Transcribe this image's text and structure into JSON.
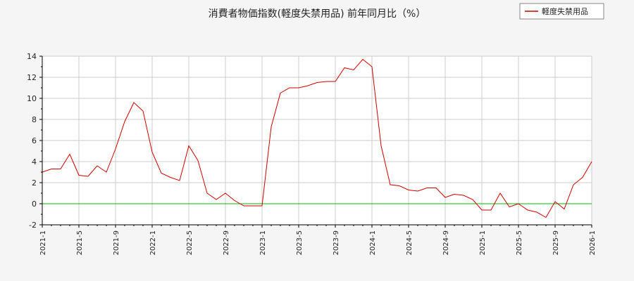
{
  "chart_data": {
    "type": "line",
    "title": "消費者物価指数(軽度失禁用品) 前年同月比（%）",
    "xlabel": "",
    "ylabel": "",
    "ylim": [
      -2,
      14
    ],
    "yticks": [
      -2,
      0,
      2,
      4,
      6,
      8,
      10,
      12,
      14
    ],
    "xticks": [
      "2021-1",
      "2021-5",
      "2021-9",
      "2022-1",
      "2022-5",
      "2022-9",
      "2023-1",
      "2023-5",
      "2023-9",
      "2024-1",
      "2024-5",
      "2024-9",
      "2025-1",
      "2025-5",
      "2025-9",
      "2026-1"
    ],
    "grid": true,
    "legend_position": "top-right",
    "colors": {
      "series": "#cc0000",
      "zero_line": "#00bb00",
      "grid": "#cccccc",
      "axis": "#000000",
      "plot_bg": "#ffffff",
      "page_bg": "#f5f5f5"
    },
    "series": [
      {
        "name": "軽度失禁用品",
        "x": [
          "2021-1",
          "2021-2",
          "2021-3",
          "2021-4",
          "2021-5",
          "2021-6",
          "2021-7",
          "2021-8",
          "2021-9",
          "2021-10",
          "2021-11",
          "2021-12",
          "2022-1",
          "2022-2",
          "2022-3",
          "2022-4",
          "2022-5",
          "2022-6",
          "2022-7",
          "2022-8",
          "2022-9",
          "2022-10",
          "2022-11",
          "2022-12",
          "2023-1",
          "2023-2",
          "2023-3",
          "2023-4",
          "2023-5",
          "2023-6",
          "2023-7",
          "2023-8",
          "2023-9",
          "2023-10",
          "2023-11",
          "2023-12",
          "2024-1",
          "2024-2",
          "2024-3",
          "2024-4",
          "2024-5",
          "2024-6",
          "2024-7",
          "2024-8",
          "2024-9",
          "2024-10",
          "2024-11",
          "2024-12",
          "2025-1",
          "2025-2",
          "2025-3",
          "2025-4",
          "2025-5",
          "2025-6",
          "2025-7",
          "2025-8",
          "2025-9",
          "2025-10",
          "2025-11",
          "2025-12",
          "2026-1"
        ],
        "values": [
          3.0,
          3.3,
          3.3,
          4.7,
          2.7,
          2.6,
          3.6,
          3.0,
          5.2,
          7.8,
          9.6,
          8.8,
          4.9,
          2.9,
          2.5,
          2.2,
          5.5,
          4.1,
          1.0,
          0.4,
          1.0,
          0.3,
          -0.2,
          -0.2,
          -0.2,
          7.3,
          10.5,
          11.0,
          11.0,
          11.2,
          11.5,
          11.6,
          11.6,
          12.9,
          12.7,
          13.7,
          13.0,
          5.5,
          1.8,
          1.7,
          1.3,
          1.2,
          1.5,
          1.5,
          0.6,
          0.9,
          0.8,
          0.4,
          -0.6,
          -0.6,
          1.0,
          -0.3,
          0.0,
          -0.6,
          -0.8,
          -1.3,
          0.2,
          -0.5,
          1.8,
          2.5,
          4.0
        ]
      }
    ]
  }
}
